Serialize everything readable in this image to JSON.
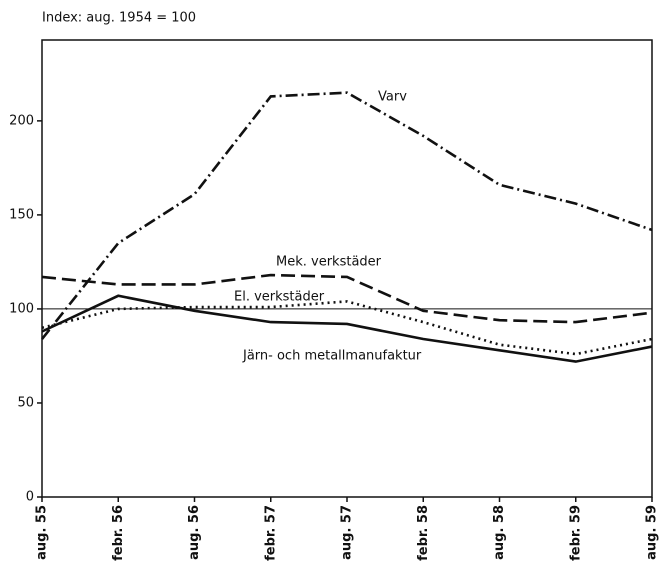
{
  "chart_data": {
    "type": "line",
    "title": "Index: aug. 1954 = 100",
    "categories": [
      "aug. 55",
      "febr. 56",
      "aug. 56",
      "febr. 57",
      "aug. 57",
      "febr. 58",
      "aug. 58",
      "febr. 59",
      "aug. 59"
    ],
    "series": [
      {
        "name": "Varv",
        "color": "#111111",
        "dash": "12 4 2 4",
        "values": [
          84,
          135,
          161,
          213,
          215,
          192,
          166,
          156,
          142
        ]
      },
      {
        "name": "Mek. verkstäder",
        "color": "#111111",
        "dash": "14 6",
        "values": [
          117,
          113,
          113,
          118,
          117,
          99,
          94,
          93,
          98
        ]
      },
      {
        "name": "El. verkstäder",
        "color": "#111111",
        "dash": "2 4",
        "values": [
          90,
          100,
          101,
          101,
          104,
          93,
          81,
          76,
          84
        ]
      },
      {
        "name": "Järn- och metallmanufaktur",
        "color": "#111111",
        "dash": "none",
        "values": [
          88,
          107,
          99,
          93,
          92,
          84,
          78,
          72,
          80
        ]
      }
    ],
    "reference_line": 100,
    "ylim": [
      0,
      243
    ],
    "yticks": [
      0,
      50,
      100,
      150,
      200
    ],
    "grid": false
  }
}
